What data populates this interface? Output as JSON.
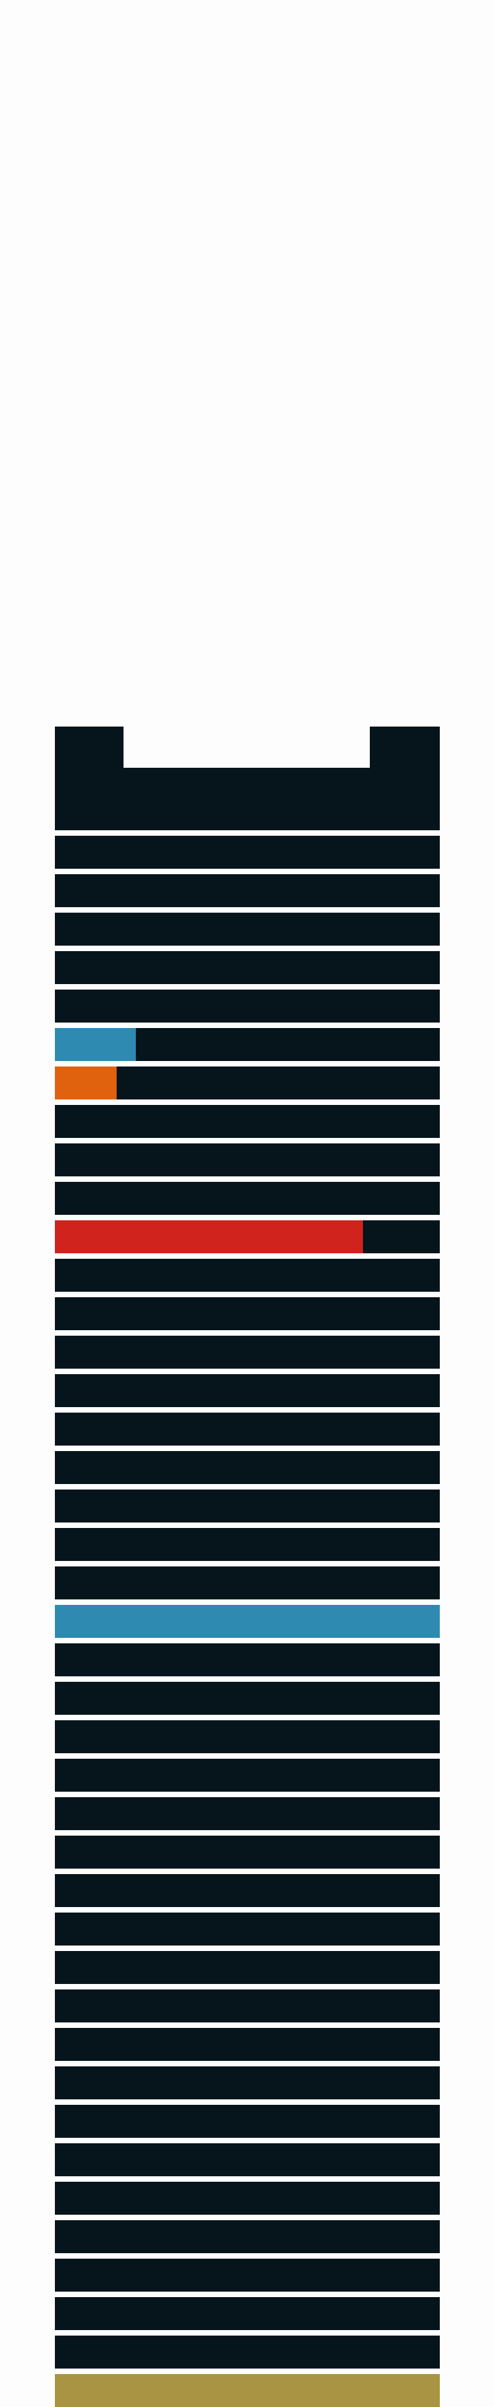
{
  "colors": {
    "page_background": "#fdfdfd",
    "bar_track": "#06151c",
    "blue": "#2e8ab1",
    "orange": "#e0620f",
    "red": "#d1231d",
    "gold": "#a89443"
  },
  "bars": [
    {
      "fill": 0,
      "color": "blue"
    },
    {
      "fill": 0,
      "color": "blue"
    },
    {
      "fill": 0,
      "color": "blue"
    },
    {
      "fill": 0,
      "color": "blue"
    },
    {
      "fill": 0,
      "color": "blue"
    },
    {
      "fill": 0.21,
      "color": "blue"
    },
    {
      "fill": 0.16,
      "color": "orange"
    },
    {
      "fill": 0,
      "color": "blue"
    },
    {
      "fill": 0,
      "color": "blue"
    },
    {
      "fill": 0,
      "color": "blue"
    },
    {
      "fill": 0.8,
      "color": "red"
    },
    {
      "fill": 0,
      "color": "blue"
    },
    {
      "fill": 0,
      "color": "blue"
    },
    {
      "fill": 0,
      "color": "blue"
    },
    {
      "fill": 0,
      "color": "blue"
    },
    {
      "fill": 0,
      "color": "blue"
    },
    {
      "fill": 0,
      "color": "blue"
    },
    {
      "fill": 0,
      "color": "blue"
    },
    {
      "fill": 0,
      "color": "blue"
    },
    {
      "fill": 0,
      "color": "blue"
    },
    {
      "fill": 1,
      "color": "blue"
    },
    {
      "fill": 0,
      "color": "blue"
    },
    {
      "fill": 0,
      "color": "blue"
    },
    {
      "fill": 0,
      "color": "blue"
    },
    {
      "fill": 0,
      "color": "blue"
    },
    {
      "fill": 0,
      "color": "blue"
    },
    {
      "fill": 0,
      "color": "blue"
    },
    {
      "fill": 0,
      "color": "blue"
    },
    {
      "fill": 0,
      "color": "blue"
    },
    {
      "fill": 0,
      "color": "blue"
    },
    {
      "fill": 0,
      "color": "blue"
    },
    {
      "fill": 0,
      "color": "blue"
    },
    {
      "fill": 0,
      "color": "blue"
    },
    {
      "fill": 0,
      "color": "blue"
    },
    {
      "fill": 0,
      "color": "blue"
    },
    {
      "fill": 0,
      "color": "blue"
    },
    {
      "fill": 0,
      "color": "blue"
    },
    {
      "fill": 0,
      "color": "blue"
    },
    {
      "fill": 0,
      "color": "blue"
    },
    {
      "fill": 0,
      "color": "blue"
    },
    {
      "fill": 1,
      "color": "gold"
    }
  ]
}
